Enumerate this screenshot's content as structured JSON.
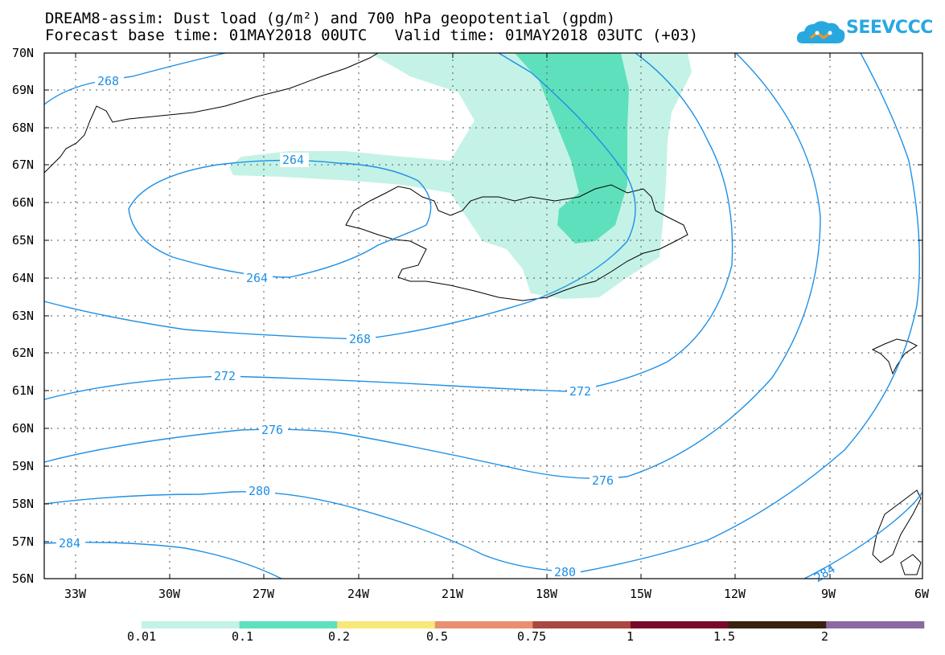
{
  "title": {
    "line1": "DREAM8-assim: Dust load (g/m²) and 700 hPa geopotential (gpdm)",
    "line2": "Forecast base time: 01MAY2018 00UTC   Valid time: 01MAY2018 03UTC (+03)"
  },
  "logo": {
    "text": "SEEVCCC",
    "icon": "cloud-network-icon",
    "color": "#29a8e0"
  },
  "axes": {
    "lat_labels": [
      "70N",
      "69N",
      "68N",
      "67N",
      "66N",
      "65N",
      "64N",
      "63N",
      "62N",
      "61N",
      "60N",
      "59N",
      "58N",
      "57N",
      "56N"
    ],
    "lon_labels": [
      "33W",
      "30W",
      "27W",
      "24W",
      "21W",
      "18W",
      "15W",
      "12W",
      "9W",
      "6W"
    ]
  },
  "contours": {
    "color": "#1e90e6",
    "labels": [
      "268",
      "264",
      "264",
      "268",
      "272",
      "272",
      "276",
      "276",
      "280",
      "280",
      "284",
      "284"
    ]
  },
  "dust": {
    "light_color": "#c4f2e6",
    "dark_color": "#5ee0bc"
  },
  "colorbar": {
    "colors": [
      "#c4f2e6",
      "#5ee0bc",
      "#f8e87a",
      "#e89070",
      "#a84840",
      "#7a0a2a",
      "#3a2210",
      "#8a6aa0"
    ],
    "labels": [
      "0.01",
      "0.1",
      "0.2",
      "0.5",
      "0.75",
      "1",
      "1.5",
      "2"
    ]
  }
}
